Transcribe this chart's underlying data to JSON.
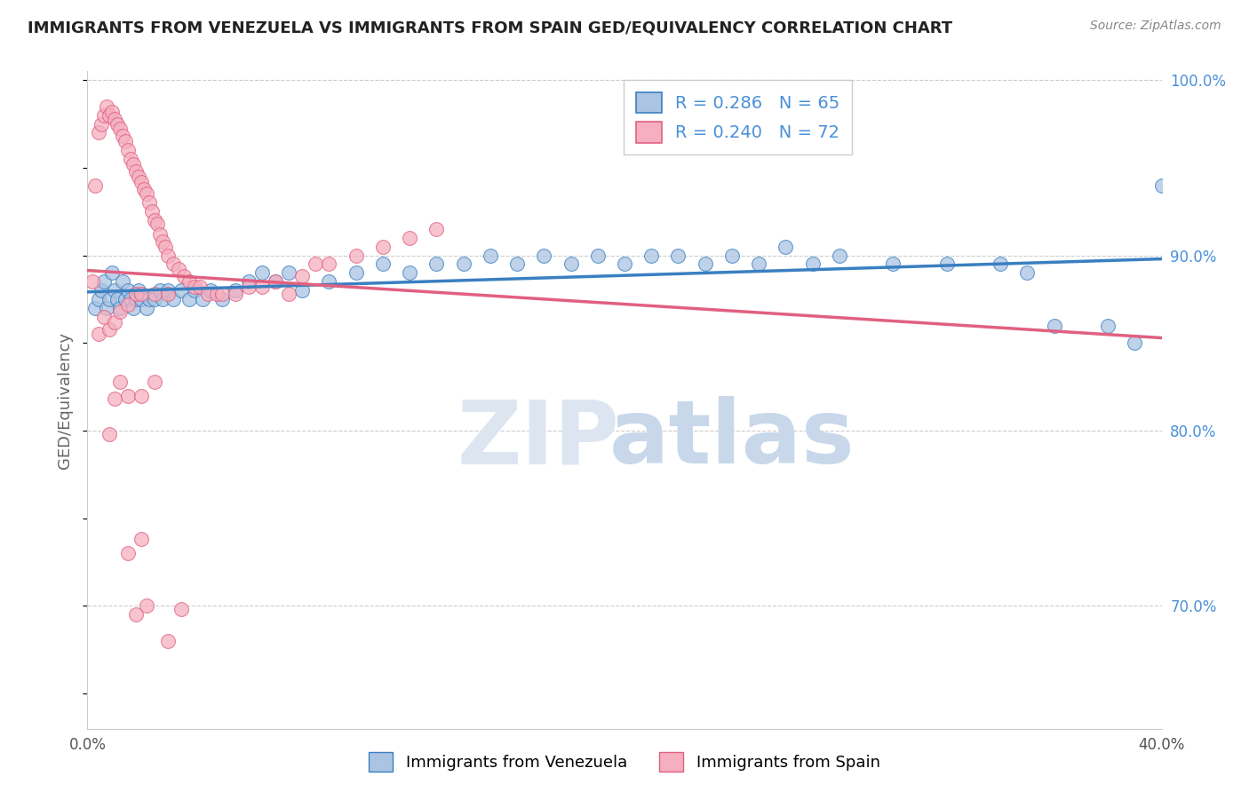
{
  "title": "IMMIGRANTS FROM VENEZUELA VS IMMIGRANTS FROM SPAIN GED/EQUIVALENCY CORRELATION CHART",
  "source": "Source: ZipAtlas.com",
  "ylabel": "GED/Equivalency",
  "legend_label_blue": "Immigrants from Venezuela",
  "legend_label_pink": "Immigrants from Spain",
  "r_blue": 0.286,
  "n_blue": 65,
  "r_pink": 0.24,
  "n_pink": 72,
  "xlim": [
    0.0,
    0.4
  ],
  "ylim": [
    0.63,
    1.005
  ],
  "xticks": [
    0.0,
    0.05,
    0.1,
    0.15,
    0.2,
    0.25,
    0.3,
    0.35,
    0.4
  ],
  "ytick_labels_right": [
    "70.0%",
    "80.0%",
    "90.0%",
    "100.0%"
  ],
  "yticks_right": [
    0.7,
    0.8,
    0.9,
    1.0
  ],
  "color_blue": "#aac4e2",
  "color_pink": "#f5afc0",
  "line_color_blue": "#3a7fc1",
  "line_color_pink": "#e06080",
  "background_color": "#ffffff",
  "blue_scatter_x": [
    0.003,
    0.004,
    0.005,
    0.006,
    0.007,
    0.008,
    0.009,
    0.01,
    0.011,
    0.012,
    0.013,
    0.014,
    0.015,
    0.016,
    0.017,
    0.018,
    0.019,
    0.02,
    0.022,
    0.023,
    0.025,
    0.027,
    0.028,
    0.03,
    0.032,
    0.035,
    0.038,
    0.04,
    0.043,
    0.046,
    0.05,
    0.055,
    0.06,
    0.065,
    0.07,
    0.075,
    0.08,
    0.09,
    0.1,
    0.11,
    0.12,
    0.13,
    0.14,
    0.15,
    0.16,
    0.17,
    0.18,
    0.19,
    0.2,
    0.21,
    0.22,
    0.23,
    0.24,
    0.25,
    0.26,
    0.27,
    0.28,
    0.3,
    0.32,
    0.34,
    0.35,
    0.36,
    0.38,
    0.39,
    0.4
  ],
  "blue_scatter_y": [
    0.87,
    0.875,
    0.88,
    0.885,
    0.87,
    0.875,
    0.89,
    0.88,
    0.875,
    0.87,
    0.885,
    0.875,
    0.88,
    0.875,
    0.87,
    0.875,
    0.88,
    0.875,
    0.87,
    0.875,
    0.875,
    0.88,
    0.875,
    0.88,
    0.875,
    0.88,
    0.875,
    0.88,
    0.875,
    0.88,
    0.875,
    0.88,
    0.885,
    0.89,
    0.885,
    0.89,
    0.88,
    0.885,
    0.89,
    0.895,
    0.89,
    0.895,
    0.895,
    0.9,
    0.895,
    0.9,
    0.895,
    0.9,
    0.895,
    0.9,
    0.9,
    0.895,
    0.9,
    0.895,
    0.905,
    0.895,
    0.9,
    0.895,
    0.895,
    0.895,
    0.89,
    0.86,
    0.86,
    0.85,
    0.94
  ],
  "pink_scatter_x": [
    0.002,
    0.003,
    0.004,
    0.005,
    0.006,
    0.007,
    0.008,
    0.009,
    0.01,
    0.011,
    0.012,
    0.013,
    0.014,
    0.015,
    0.016,
    0.017,
    0.018,
    0.019,
    0.02,
    0.021,
    0.022,
    0.023,
    0.024,
    0.025,
    0.026,
    0.027,
    0.028,
    0.029,
    0.03,
    0.032,
    0.034,
    0.036,
    0.038,
    0.04,
    0.042,
    0.045,
    0.048,
    0.05,
    0.055,
    0.06,
    0.065,
    0.07,
    0.075,
    0.08,
    0.085,
    0.09,
    0.1,
    0.11,
    0.12,
    0.13,
    0.004,
    0.006,
    0.008,
    0.01,
    0.012,
    0.015,
    0.018,
    0.02,
    0.025,
    0.03,
    0.008,
    0.01,
    0.012,
    0.015,
    0.02,
    0.025,
    0.015,
    0.02,
    0.018,
    0.022,
    0.03,
    0.035
  ],
  "pink_scatter_y": [
    0.885,
    0.94,
    0.97,
    0.975,
    0.98,
    0.985,
    0.98,
    0.982,
    0.978,
    0.975,
    0.972,
    0.968,
    0.965,
    0.96,
    0.955,
    0.952,
    0.948,
    0.945,
    0.942,
    0.938,
    0.935,
    0.93,
    0.925,
    0.92,
    0.918,
    0.912,
    0.908,
    0.905,
    0.9,
    0.895,
    0.892,
    0.888,
    0.885,
    0.882,
    0.882,
    0.878,
    0.878,
    0.878,
    0.878,
    0.882,
    0.882,
    0.885,
    0.878,
    0.888,
    0.895,
    0.895,
    0.9,
    0.905,
    0.91,
    0.915,
    0.855,
    0.865,
    0.858,
    0.862,
    0.868,
    0.872,
    0.878,
    0.878,
    0.878,
    0.878,
    0.798,
    0.818,
    0.828,
    0.82,
    0.82,
    0.828,
    0.73,
    0.738,
    0.695,
    0.7,
    0.68,
    0.698
  ]
}
